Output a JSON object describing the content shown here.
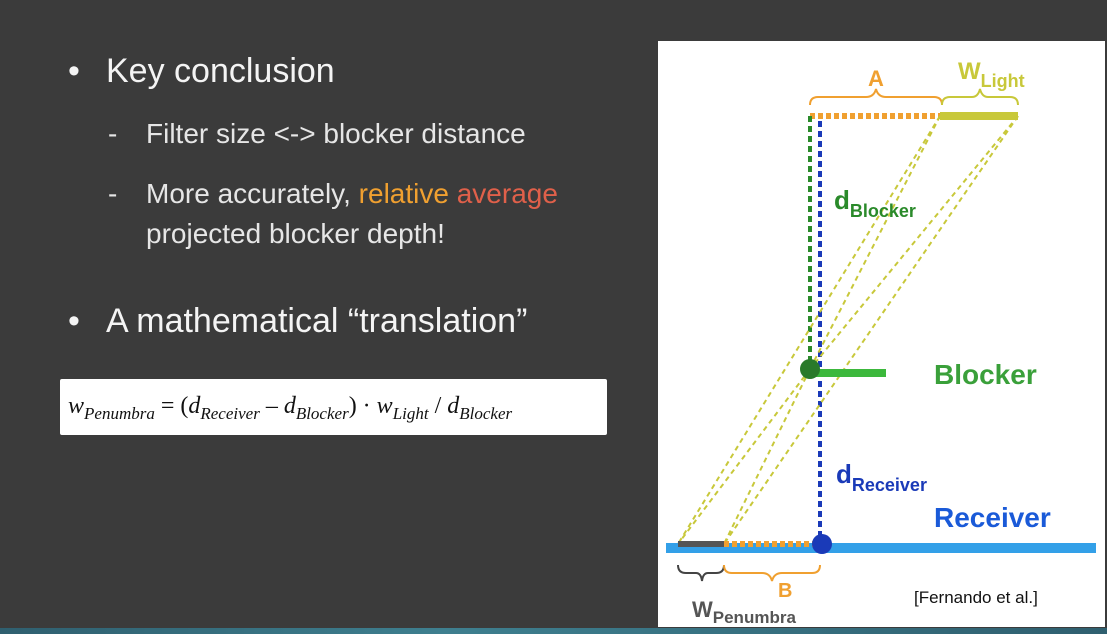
{
  "bullets": {
    "b1": "Key conclusion",
    "b1_sub1": "Filter size <-> blocker distance",
    "b1_sub2_prefix": "More accurately, ",
    "b1_sub2_hl1": "relative",
    "b1_sub2_hl2": "average",
    "b1_sub2_line2": "projected blocker depth!",
    "b2": "A mathematical “translation”",
    "bullet_glyph": "•",
    "dash_glyph": "-"
  },
  "formula": {
    "w": "w",
    "w_sub": "Penumbra",
    "eq": " = (",
    "d1": "d",
    "d1_sub": "Receiver",
    "minus": " – ",
    "d2": "d",
    "d2_sub": "Blocker",
    "close_dot": ") · ",
    "w2": "w",
    "w2_sub": "Light",
    "slash": " / ",
    "d3": "d",
    "d3_sub": "Blocker"
  },
  "figure": {
    "label_a": "A",
    "label_b": "B",
    "w_light": "W",
    "w_light_sub": "Light",
    "d_blocker": "d",
    "d_blocker_sub": "Blocker",
    "d_receiver": "d",
    "d_receiver_sub": "Receiver",
    "blocker_label": "Blocker",
    "receiver_label": "Receiver",
    "w_penumbra": "W",
    "w_penumbra_sub": "Penumbra",
    "citation": "[Fernando et al.]"
  },
  "colors": {
    "orange": "#f0a030",
    "green": "#2a8a2a",
    "light_green": "#3cb83c",
    "blue": "#1a3ab8",
    "light_blue": "#33a0e8",
    "yellow_green": "#c8c83a"
  }
}
